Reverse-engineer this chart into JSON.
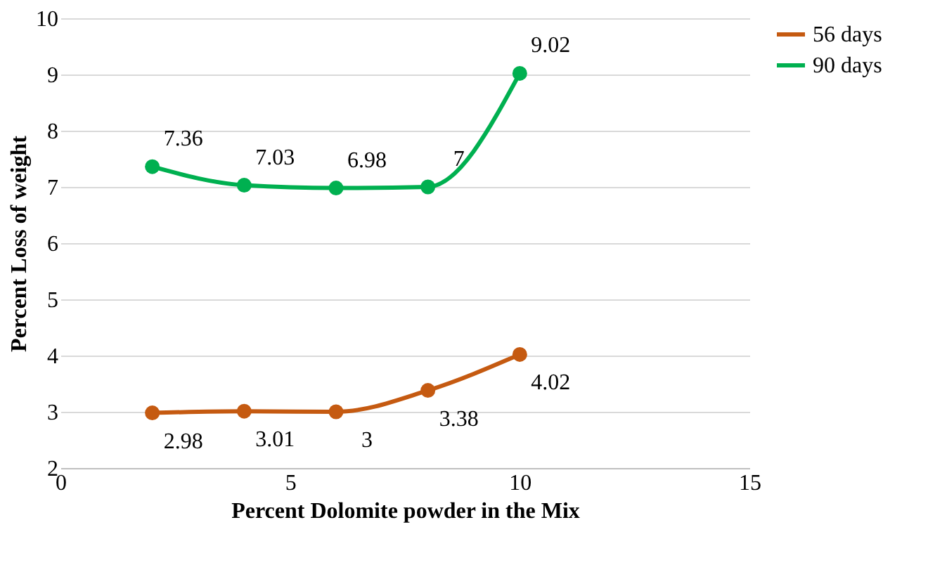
{
  "chart_data": {
    "type": "line",
    "xlabel": "Percent Dolomite powder in the Mix",
    "ylabel": "Percent Loss of weight",
    "x": [
      2,
      4,
      6,
      8,
      10
    ],
    "series": [
      {
        "name": "56 days",
        "color": "#c55a11",
        "values": [
          2.98,
          3.01,
          3,
          3.38,
          4.02
        ]
      },
      {
        "name": "90 days",
        "color": "#00b050",
        "values": [
          7.36,
          7.03,
          6.98,
          7,
          9.02
        ]
      }
    ],
    "xlim": [
      0,
      15
    ],
    "xticks": [
      0,
      5,
      10,
      15
    ],
    "ylim": [
      2,
      10
    ],
    "yticks": [
      2,
      3,
      4,
      5,
      6,
      7,
      8,
      9,
      10
    ],
    "grid": "y",
    "legend": "right",
    "marker": "circle",
    "line_style": "solid",
    "data_labels": true
  }
}
